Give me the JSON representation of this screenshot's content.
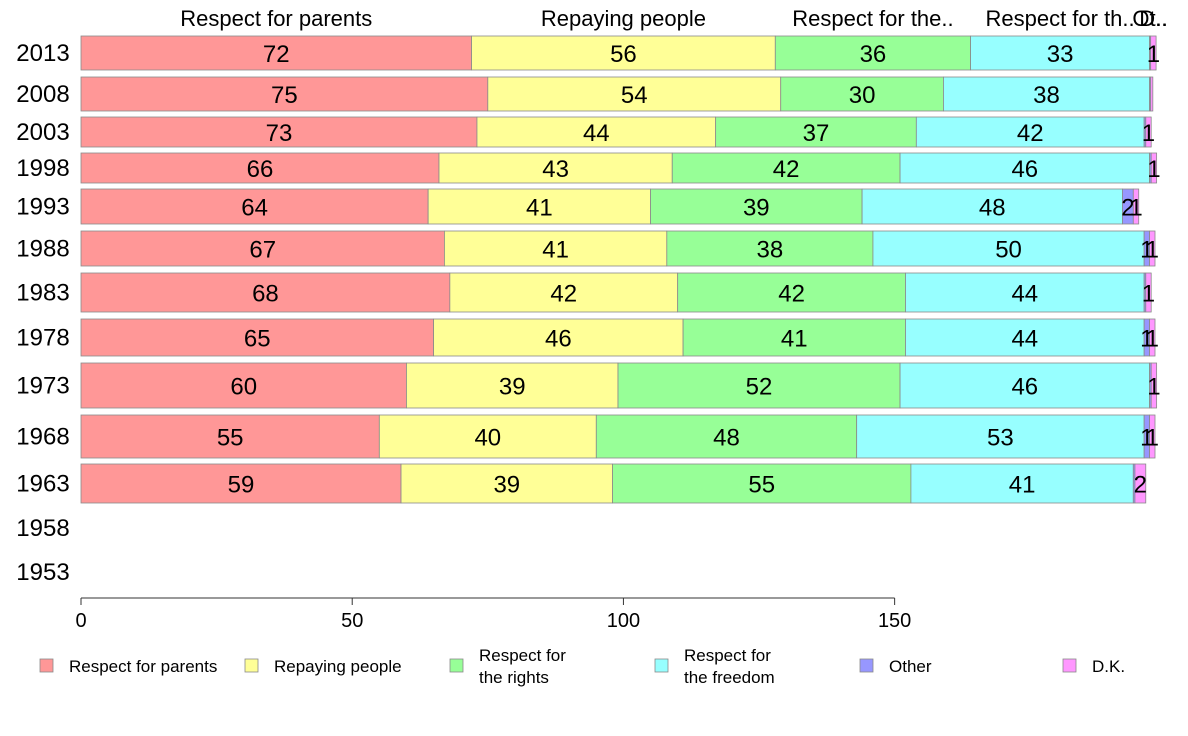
{
  "chart_data": {
    "type": "bar",
    "orientation": "horizontal",
    "stacked": true,
    "categories": [
      "2013",
      "2008",
      "2003",
      "1998",
      "1993",
      "1988",
      "1983",
      "1978",
      "1973",
      "1968",
      "1963",
      "1958",
      "1953"
    ],
    "series": [
      {
        "name": "Respect for parents",
        "color": "#ff9797",
        "header": "Respect for parents",
        "values": [
          72,
          75,
          73,
          66,
          64,
          67,
          68,
          65,
          60,
          55,
          59,
          null,
          null
        ],
        "labels": [
          "72",
          "75",
          "73",
          "66",
          "64",
          "67",
          "68",
          "65",
          "60",
          "55",
          "59",
          "",
          ""
        ]
      },
      {
        "name": "Repaying people",
        "color": "#ffff97",
        "header": "Repaying people",
        "values": [
          56,
          54,
          44,
          43,
          41,
          41,
          42,
          46,
          39,
          40,
          39,
          null,
          null
        ],
        "labels": [
          "56",
          "54",
          "44",
          "43",
          "41",
          "41",
          "42",
          "46",
          "39",
          "40",
          "39",
          "",
          ""
        ]
      },
      {
        "name": "Respect for the rights",
        "color": "#97ff97",
        "header": "Respect for the..",
        "values": [
          36,
          30,
          37,
          42,
          39,
          38,
          42,
          41,
          52,
          48,
          55,
          null,
          null
        ],
        "labels": [
          "36",
          "30",
          "37",
          "42",
          "39",
          "38",
          "42",
          "41",
          "52",
          "48",
          "55",
          "",
          ""
        ]
      },
      {
        "name": "Respect for the freedom",
        "color": "#97ffff",
        "header": "Respect for th..",
        "values": [
          33,
          38,
          42,
          46,
          48,
          50,
          44,
          44,
          46,
          53,
          41,
          null,
          null
        ],
        "labels": [
          "33",
          "38",
          "42",
          "46",
          "48",
          "50",
          "44",
          "44",
          "46",
          "53",
          "41",
          "",
          ""
        ]
      },
      {
        "name": "Other",
        "color": "#9797ff",
        "header": "Ot..",
        "values": [
          0.2,
          0.2,
          0.3,
          0.3,
          2,
          1,
          0.3,
          1,
          0.3,
          1,
          0.3,
          null,
          null
        ],
        "labels": [
          "",
          "",
          "",
          "",
          "2",
          "1",
          "",
          "1",
          "",
          "1",
          "",
          "",
          ""
        ]
      },
      {
        "name": "D.K.",
        "color": "#ff97ff",
        "header": "D..",
        "values": [
          1,
          0.4,
          1,
          1,
          1,
          1,
          1,
          1,
          1,
          1,
          2,
          null,
          null
        ],
        "labels": [
          "1",
          "",
          "1",
          "1",
          "1",
          "1",
          "1",
          "1",
          "1",
          "1",
          "2",
          "",
          ""
        ]
      }
    ],
    "xlim": [
      0,
      198
    ],
    "xticks": [
      0,
      50,
      100,
      150
    ],
    "grid": false,
    "legend_position": "bottom",
    "legend_labels": [
      [
        "Respect for parents"
      ],
      [
        "Repaying people"
      ],
      [
        "Respect for",
        "the rights"
      ],
      [
        "Respect for",
        "the freedom"
      ],
      [
        "Other"
      ],
      [
        "D.K."
      ]
    ]
  }
}
